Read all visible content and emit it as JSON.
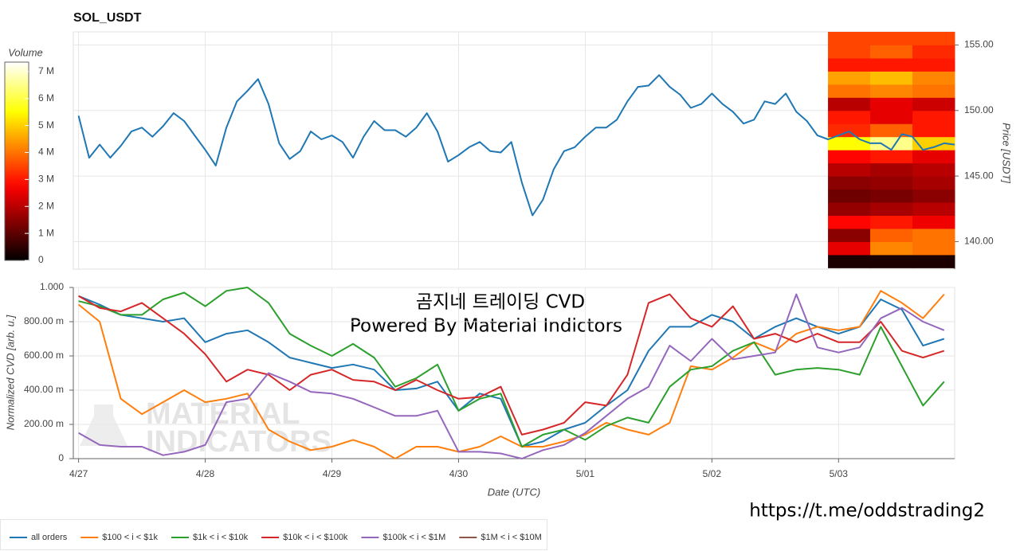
{
  "chart_data": [
    {
      "type": "line",
      "title": "SOL_USDT",
      "x": [
        0,
        2,
        4,
        6,
        8,
        10,
        12,
        14,
        16,
        18,
        20,
        22,
        24,
        26,
        28,
        30,
        32,
        34,
        36,
        38,
        40,
        42,
        44,
        46,
        48,
        50,
        52,
        54,
        56,
        58,
        60,
        62,
        64,
        66,
        68,
        70,
        72,
        74,
        76,
        78,
        80,
        82,
        84,
        86,
        88,
        90,
        92,
        94,
        96,
        98,
        100,
        102,
        104,
        106,
        108,
        110,
        112,
        114,
        116,
        118,
        120,
        122,
        124,
        126,
        128,
        130,
        132,
        134,
        136,
        138,
        140,
        142,
        144,
        146,
        148,
        150,
        152,
        154,
        156,
        158,
        160,
        162,
        164,
        166
      ],
      "values": [
        149.6,
        146.4,
        147.4,
        146.4,
        147.3,
        148.4,
        148.7,
        148.0,
        148.8,
        149.8,
        149.2,
        148.1,
        147.0,
        145.8,
        148.7,
        150.7,
        151.5,
        152.4,
        150.5,
        147.5,
        146.3,
        146.9,
        148.4,
        147.8,
        148.1,
        147.6,
        146.4,
        148.0,
        149.2,
        148.5,
        148.5,
        148.0,
        148.7,
        149.8,
        148.4,
        146.1,
        146.6,
        147.2,
        147.6,
        146.9,
        146.8,
        147.6,
        144.5,
        142.0,
        143.2,
        145.5,
        146.9,
        147.2,
        148.0,
        148.7,
        148.7,
        149.3,
        150.7,
        151.8,
        151.9,
        152.7,
        151.8,
        151.2,
        150.2,
        150.5,
        151.3,
        150.5,
        149.9,
        149.0,
        149.3,
        150.7,
        150.5,
        151.3,
        149.9,
        149.2,
        148.1,
        147.8,
        148.1,
        148.4,
        147.8,
        147.5,
        147.5,
        147.0,
        148.2,
        148.0,
        147.0,
        147.2,
        147.5,
        147.4
      ],
      "color": "#1f77b4",
      "ylabel": "Price [USDT]",
      "y_axis_side": "right",
      "ylim": [
        137.9,
        156.0
      ],
      "yticks": [
        {
          "value": 140,
          "label": "140.00"
        },
        {
          "value": 145,
          "label": "145.00"
        },
        {
          "value": 150,
          "label": "150.00"
        },
        {
          "value": 155,
          "label": "155.00"
        }
      ],
      "grid": true,
      "heatmap": {
        "time_bins": [
          142,
          150,
          158,
          166
        ],
        "price_bins": [
          138,
          139,
          140,
          141,
          142,
          143,
          144,
          145,
          146,
          147,
          148,
          149,
          150,
          151,
          152,
          153,
          154,
          155,
          156
        ],
        "values": [
          [
            300000,
            300000,
            300000
          ],
          [
            2500000,
            4200000,
            4000000
          ],
          [
            1500000,
            3800000,
            4000000
          ],
          [
            2800000,
            3000000,
            2600000
          ],
          [
            1600000,
            1800000,
            2000000
          ],
          [
            1200000,
            1300000,
            1500000
          ],
          [
            1500000,
            1600000,
            1800000
          ],
          [
            2000000,
            1800000,
            2000000
          ],
          [
            2800000,
            3000000,
            2500000
          ],
          [
            5500000,
            6500000,
            5000000
          ],
          [
            3200000,
            3800000,
            3000000
          ],
          [
            3000000,
            2500000,
            3000000
          ],
          [
            2000000,
            2500000,
            2200000
          ],
          [
            4000000,
            4200000,
            4000000
          ],
          [
            4500000,
            4800000,
            4200000
          ],
          [
            3000000,
            3000000,
            3000000
          ],
          [
            3500000,
            3800000,
            3200000
          ],
          [
            3500000,
            3500000,
            3500000
          ]
        ]
      },
      "colorbar": {
        "title": "Volume",
        "colormap": "hot",
        "clim": [
          0,
          7350000
        ],
        "ticks": [
          0,
          {
            "value": 1000000,
            "label": "1 M"
          },
          {
            "value": 2000000,
            "label": "2 M"
          },
          {
            "value": 3000000,
            "label": "3 M"
          },
          {
            "value": 4000000,
            "label": "4 M"
          },
          {
            "value": 5000000,
            "label": "5 M"
          },
          {
            "value": 6000000,
            "label": "6 M"
          },
          {
            "value": 7000000,
            "label": "7 M"
          }
        ]
      }
    },
    {
      "type": "line",
      "x": [
        0,
        4,
        8,
        12,
        16,
        20,
        24,
        28,
        32,
        36,
        40,
        44,
        48,
        52,
        56,
        60,
        64,
        68,
        72,
        76,
        80,
        84,
        88,
        92,
        96,
        100,
        104,
        108,
        112,
        116,
        120,
        124,
        128,
        132,
        136,
        140,
        144,
        148,
        152,
        156,
        160,
        164
      ],
      "xlim": [
        -1,
        166
      ],
      "xticks": [
        {
          "value": 0,
          "label": "4/27"
        },
        {
          "value": 24,
          "label": "4/28"
        },
        {
          "value": 48,
          "label": "4/29"
        },
        {
          "value": 72,
          "label": "4/30"
        },
        {
          "value": 96,
          "label": "5/01"
        },
        {
          "value": 120,
          "label": "5/02"
        },
        {
          "value": 144,
          "label": "5/03"
        }
      ],
      "xlabel": "Date (UTC)",
      "ylabel": "Normalized CVD [arb. u.]",
      "ylim": [
        0,
        1
      ],
      "yticks": [
        0,
        {
          "value": 0.2,
          "label": "200.00 m"
        },
        {
          "value": 0.4,
          "label": "400.00 m"
        },
        {
          "value": 0.6,
          "label": "600.00 m"
        },
        {
          "value": 0.8,
          "label": "800.00 m"
        },
        {
          "value": 1,
          "label": "1.000"
        }
      ],
      "grid": true,
      "legend": "bottom-left",
      "series": [
        {
          "name": "all orders",
          "color": "#1f77b4",
          "values": [
            0.95,
            0.9,
            0.84,
            0.82,
            0.8,
            0.82,
            0.68,
            0.73,
            0.75,
            0.68,
            0.59,
            0.56,
            0.53,
            0.55,
            0.52,
            0.4,
            0.41,
            0.45,
            0.28,
            0.38,
            0.35,
            0.07,
            0.1,
            0.17,
            0.21,
            0.31,
            0.4,
            0.63,
            0.77,
            0.77,
            0.84,
            0.8,
            0.7,
            0.77,
            0.82,
            0.77,
            0.73,
            0.77,
            0.93,
            0.87,
            0.66,
            0.7
          ]
        },
        {
          "name": "$100 < i < $1k",
          "color": "#ff7f0e",
          "values": [
            0.9,
            0.8,
            0.35,
            0.26,
            0.33,
            0.4,
            0.33,
            0.35,
            0.38,
            0.17,
            0.1,
            0.05,
            0.07,
            0.11,
            0.07,
            0.0,
            0.07,
            0.07,
            0.04,
            0.07,
            0.13,
            0.07,
            0.07,
            0.1,
            0.14,
            0.21,
            0.17,
            0.14,
            0.21,
            0.54,
            0.52,
            0.59,
            0.68,
            0.63,
            0.73,
            0.77,
            0.75,
            0.77,
            0.98,
            0.91,
            0.82,
            0.96
          ]
        },
        {
          "name": "$1k < i < $10k",
          "color": "#2ca02c",
          "values": [
            0.92,
            0.89,
            0.84,
            0.84,
            0.93,
            0.97,
            0.89,
            0.98,
            1.0,
            0.91,
            0.73,
            0.66,
            0.6,
            0.67,
            0.59,
            0.42,
            0.47,
            0.55,
            0.28,
            0.35,
            0.38,
            0.07,
            0.14,
            0.17,
            0.11,
            0.19,
            0.24,
            0.21,
            0.42,
            0.52,
            0.54,
            0.63,
            0.68,
            0.49,
            0.52,
            0.53,
            0.52,
            0.49,
            0.77,
            0.54,
            0.31,
            0.45
          ]
        },
        {
          "name": "$10k < i < $100k",
          "color": "#d62728",
          "values": [
            0.95,
            0.88,
            0.86,
            0.91,
            0.82,
            0.73,
            0.61,
            0.45,
            0.52,
            0.49,
            0.4,
            0.49,
            0.52,
            0.46,
            0.45,
            0.4,
            0.46,
            0.4,
            0.35,
            0.36,
            0.42,
            0.14,
            0.17,
            0.21,
            0.33,
            0.31,
            0.49,
            0.91,
            0.96,
            0.82,
            0.77,
            0.89,
            0.7,
            0.73,
            0.68,
            0.73,
            0.68,
            0.68,
            0.8,
            0.63,
            0.59,
            0.63
          ]
        },
        {
          "name": "$100k < i < $1M",
          "color": "#9467bd",
          "values": [
            0.15,
            0.08,
            0.07,
            0.07,
            0.02,
            0.04,
            0.08,
            0.33,
            0.35,
            0.5,
            0.45,
            0.39,
            0.38,
            0.35,
            0.3,
            0.25,
            0.25,
            0.28,
            0.04,
            0.04,
            0.03,
            0.0,
            0.05,
            0.08,
            0.15,
            0.25,
            0.35,
            0.42,
            0.66,
            0.57,
            0.7,
            0.58,
            0.6,
            0.62,
            0.96,
            0.65,
            0.62,
            0.65,
            0.82,
            0.88,
            0.8,
            0.75
          ]
        },
        {
          "name": "$1M < i < $10M",
          "color": "#8c564b",
          "values": [
            null,
            null,
            null,
            null,
            null,
            null,
            null,
            null,
            null,
            null,
            null,
            null,
            null,
            null,
            null,
            null,
            null,
            null,
            null,
            null,
            null,
            null,
            null,
            null,
            null,
            null,
            null,
            null,
            null,
            null,
            null,
            null,
            null,
            null,
            null,
            null,
            null,
            null,
            null,
            null,
            null,
            null
          ]
        }
      ]
    }
  ],
  "annotations": [
    "곰지네 트레이딩 CVD",
    "Powered By Material Indictors",
    "https://t.me/oddstrading2"
  ],
  "watermark": [
    "MATERIAL",
    "INDICATORS"
  ]
}
